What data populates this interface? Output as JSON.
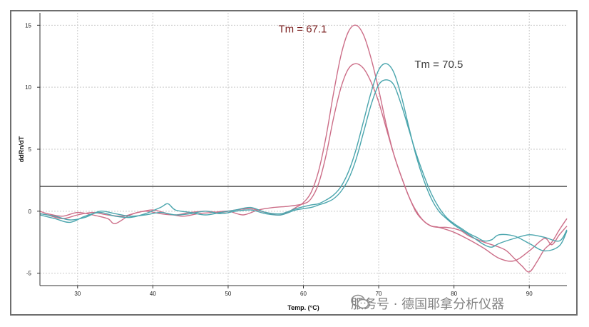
{
  "chart_data": {
    "type": "line",
    "title": "",
    "xlabel": "Temp. (°C)",
    "ylabel": "ddRn/dT",
    "xlim": [
      25,
      95
    ],
    "ylim": [
      -6,
      16
    ],
    "xticks": [
      30,
      40,
      50,
      60,
      70,
      80,
      90
    ],
    "yticks": [
      -5,
      0,
      5,
      10,
      15
    ],
    "grid": true,
    "threshold": 2.0,
    "colors": {
      "red": "#cc6e88",
      "teal": "#4aa5ad",
      "threshold": "#555555",
      "anno_red": "#7a1f1f",
      "anno_gray": "#3c3c3c"
    },
    "annotations": [
      {
        "text": "Tm = 67.1",
        "x": 67.1,
        "y": 15.0,
        "color": "#7a1f1f"
      },
      {
        "text": "Tm = 70.5",
        "x": 70.5,
        "y": 11.9,
        "color": "#3c3c3c"
      }
    ],
    "series": [
      {
        "name": "red-1",
        "color": "#cc6e88",
        "x": [
          25,
          26,
          28,
          30,
          32,
          34,
          35,
          37,
          39,
          41,
          43,
          45,
          47,
          49,
          51,
          53,
          55,
          57,
          59,
          60,
          61,
          62,
          63,
          64,
          65,
          66,
          67,
          68,
          69,
          70,
          71,
          72,
          73,
          74,
          75,
          76,
          77,
          78,
          79,
          80,
          81,
          82,
          84,
          86,
          87,
          88,
          89,
          90,
          91,
          92,
          93,
          94,
          95
        ],
        "y": [
          0.0,
          -0.2,
          -0.4,
          -0.1,
          -0.3,
          -0.6,
          -1.0,
          -0.3,
          0.0,
          -0.2,
          -0.3,
          -0.1,
          0.0,
          -0.1,
          0.1,
          0.2,
          -0.1,
          -0.3,
          0.3,
          0.7,
          1.5,
          3.2,
          6.0,
          9.5,
          12.6,
          14.5,
          15.0,
          14.2,
          12.3,
          9.8,
          7.0,
          4.6,
          2.8,
          1.2,
          0.0,
          -0.8,
          -1.2,
          -1.3,
          -1.3,
          -1.4,
          -1.6,
          -2.0,
          -2.5,
          -2.9,
          -3.2,
          -3.8,
          -4.4,
          -4.9,
          -4.1,
          -3.1,
          -2.5,
          -1.5,
          -0.6
        ]
      },
      {
        "name": "red-2",
        "color": "#cc6e88",
        "x": [
          25,
          26,
          28,
          30,
          32,
          34,
          36,
          38,
          40,
          42,
          44,
          46,
          48,
          50,
          52,
          54,
          56,
          58,
          60,
          61,
          62,
          63,
          64,
          65,
          66,
          67,
          68,
          69,
          70,
          71,
          72,
          73,
          74,
          75,
          76,
          77,
          78,
          80,
          82,
          84,
          86,
          88,
          90,
          92,
          93,
          94,
          95
        ],
        "y": [
          -0.2,
          -0.3,
          -0.6,
          -0.3,
          -0.1,
          -0.3,
          -0.4,
          -0.1,
          0.1,
          -0.2,
          -0.4,
          -0.2,
          -0.1,
          0.0,
          -0.3,
          0.1,
          0.3,
          0.4,
          0.6,
          1.0,
          2.2,
          4.5,
          7.5,
          10.0,
          11.5,
          11.9,
          11.5,
          10.4,
          8.8,
          6.7,
          4.6,
          2.8,
          1.2,
          -0.1,
          -0.8,
          -1.2,
          -1.3,
          -1.7,
          -2.3,
          -3.0,
          -3.8,
          -4.0,
          -3.2,
          -2.2,
          -2.7,
          -1.9,
          -1.2
        ]
      },
      {
        "name": "teal-1",
        "color": "#4aa5ad",
        "x": [
          25,
          27,
          29,
          31,
          33,
          35,
          37,
          39,
          41,
          42,
          43,
          45,
          47,
          49,
          51,
          53,
          55,
          57,
          59,
          61,
          62,
          63,
          64,
          65,
          66,
          67,
          68,
          69,
          70,
          71,
          72,
          73,
          74,
          75,
          76,
          77,
          78,
          79,
          80,
          81,
          82,
          83,
          84,
          85,
          86,
          88,
          90,
          92,
          94,
          95
        ],
        "y": [
          -0.3,
          -0.6,
          -0.9,
          -0.4,
          -0.1,
          -0.4,
          -0.5,
          -0.2,
          0.3,
          0.6,
          0.1,
          -0.1,
          -0.3,
          -0.1,
          0.1,
          0.3,
          -0.1,
          -0.2,
          0.2,
          0.5,
          0.6,
          0.9,
          1.3,
          2.0,
          3.2,
          5.0,
          7.3,
          9.6,
          11.4,
          11.9,
          11.2,
          9.3,
          6.8,
          4.4,
          2.5,
          1.0,
          0.0,
          -0.6,
          -1.1,
          -1.5,
          -1.9,
          -2.3,
          -2.7,
          -2.9,
          -2.6,
          -2.2,
          -1.9,
          -2.1,
          -2.4,
          -1.5
        ]
      },
      {
        "name": "teal-2",
        "color": "#4aa5ad",
        "x": [
          25,
          27,
          29,
          31,
          33,
          35,
          37,
          39,
          41,
          43,
          45,
          47,
          49,
          51,
          53,
          55,
          57,
          59,
          61,
          62,
          63,
          64,
          65,
          66,
          67,
          68,
          69,
          70,
          71,
          72,
          73,
          74,
          75,
          76,
          77,
          78,
          79,
          80,
          81,
          82,
          83,
          84,
          85,
          86,
          88,
          90,
          92,
          94,
          95
        ],
        "y": [
          -0.2,
          -0.4,
          -0.7,
          -0.5,
          0.0,
          -0.2,
          -0.4,
          -0.3,
          -0.1,
          -0.3,
          -0.2,
          0.0,
          -0.2,
          0.0,
          0.1,
          -0.2,
          -0.3,
          0.1,
          0.3,
          0.5,
          0.7,
          1.0,
          1.6,
          2.6,
          4.2,
          6.4,
          8.6,
          10.2,
          10.6,
          10.2,
          8.6,
          6.6,
          4.6,
          2.9,
          1.4,
          0.3,
          -0.5,
          -1.0,
          -1.4,
          -1.8,
          -2.1,
          -2.4,
          -2.3,
          -1.9,
          -2.0,
          -2.6,
          -3.2,
          -2.8,
          -1.6
        ]
      }
    ]
  },
  "watermark": {
    "text": "服务号 · 德国耶拿分析仪器",
    "icon": "wechat-icon"
  }
}
